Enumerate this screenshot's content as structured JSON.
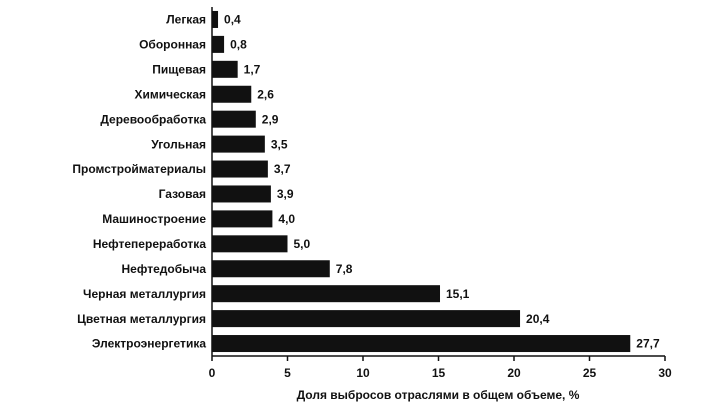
{
  "chart_data": {
    "type": "bar",
    "orientation": "horizontal",
    "categories": [
      "Легкая",
      "Оборонная",
      "Пищевая",
      "Химическая",
      "Деревообработка",
      "Угольная",
      "Промстройматериалы",
      "Газовая",
      "Машиностроение",
      "Нефтепереработка",
      "Нефтедобыча",
      "Черная металлургия",
      "Цветная металлургия",
      "Электроэнергетика"
    ],
    "values": [
      0.4,
      0.8,
      1.7,
      2.6,
      2.9,
      3.5,
      3.7,
      3.9,
      4.0,
      5.0,
      7.8,
      15.1,
      20.4,
      27.7
    ],
    "value_labels": [
      "0,4",
      "0,8",
      "1,7",
      "2,6",
      "2,9",
      "3,5",
      "3,7",
      "3,9",
      "4,0",
      "5,0",
      "7,8",
      "15,1",
      "20,4",
      "27,7"
    ],
    "color": "#111111",
    "xlim": [
      0,
      30
    ],
    "xticks": [
      0,
      5,
      10,
      15,
      20,
      25,
      30
    ],
    "xlabel": "Доля выбросов отраслями в общем объеме, %"
  }
}
